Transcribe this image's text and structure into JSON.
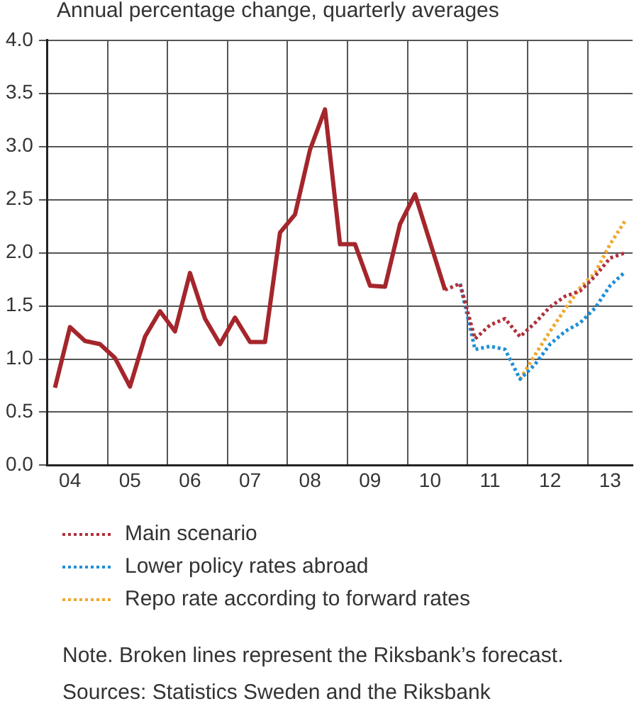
{
  "chart_data": {
    "type": "line",
    "ylabel": "Annual percentage change, quarterly averages",
    "categories": [
      null,
      "04",
      null,
      null,
      null,
      "05",
      null,
      null,
      null,
      "06",
      null,
      null,
      null,
      "07",
      null,
      null,
      null,
      "08",
      null,
      null,
      null,
      "09",
      null,
      null,
      null,
      "10",
      null,
      null,
      null,
      "11",
      null,
      null,
      null,
      "12",
      null,
      null,
      null,
      "13",
      null
    ],
    "ylim": [
      0,
      4
    ],
    "yticks": [
      {
        "value": 0,
        "label": "0.0"
      },
      {
        "value": 0.5,
        "label": "0.5"
      },
      {
        "value": 1,
        "label": "1.0"
      },
      {
        "value": 1.5,
        "label": "1.5"
      },
      {
        "value": 2,
        "label": "2.0"
      },
      {
        "value": 2.5,
        "label": "2.5"
      },
      {
        "value": 3,
        "label": "3.0"
      },
      {
        "value": 3.5,
        "label": "3.5"
      },
      {
        "value": 4,
        "label": "4.0"
      }
    ],
    "grid": true,
    "legend": "bottom",
    "series": [
      {
        "color": "#a4262c",
        "line_style": "solid",
        "values": [
          0.73,
          1.3,
          1.17,
          1.14,
          1.01,
          0.74,
          1.21,
          1.45,
          1.26,
          1.81,
          1.38,
          1.14,
          1.39,
          1.16,
          1.16,
          2.19,
          2.36,
          2.97,
          3.35,
          2.08,
          2.08,
          1.69,
          1.68,
          2.27,
          2.55,
          2.1,
          1.65,
          null,
          null,
          null,
          null,
          null,
          null,
          null,
          null,
          null,
          null,
          null,
          null
        ]
      },
      {
        "name": "Main scenario",
        "color": "#b0303a",
        "line_style": "dotted",
        "values": [
          null,
          null,
          null,
          null,
          null,
          null,
          null,
          null,
          null,
          null,
          null,
          null,
          null,
          null,
          null,
          null,
          null,
          null,
          null,
          null,
          null,
          null,
          null,
          null,
          null,
          null,
          1.65,
          1.71,
          1.19,
          1.32,
          1.38,
          1.21,
          1.34,
          1.49,
          1.59,
          1.64,
          1.78,
          1.95,
          2.0
        ]
      },
      {
        "name": "Lower policy rates abroad",
        "color": "#1f8fd6",
        "line_style": "dotted",
        "values": [
          null,
          null,
          null,
          null,
          null,
          null,
          null,
          null,
          null,
          null,
          null,
          null,
          null,
          null,
          null,
          null,
          null,
          null,
          null,
          null,
          null,
          null,
          null,
          null,
          null,
          null,
          null,
          1.71,
          1.09,
          1.12,
          1.09,
          0.81,
          0.95,
          1.14,
          1.26,
          1.34,
          1.48,
          1.69,
          1.82
        ]
      },
      {
        "name": "Repo rate according to forward rates",
        "color": "#f0a830",
        "line_style": "dotted",
        "values": [
          null,
          null,
          null,
          null,
          null,
          null,
          null,
          null,
          null,
          null,
          null,
          null,
          null,
          null,
          null,
          null,
          null,
          null,
          null,
          null,
          null,
          null,
          null,
          null,
          null,
          null,
          null,
          null,
          null,
          null,
          null,
          0.81,
          1.04,
          1.26,
          1.47,
          1.67,
          1.81,
          2.08,
          2.3
        ]
      }
    ],
    "annotations": [
      "Note. Broken lines represent the Riksbank’s forecast.",
      "Sources: Statistics Sweden and the Riksbank"
    ]
  }
}
